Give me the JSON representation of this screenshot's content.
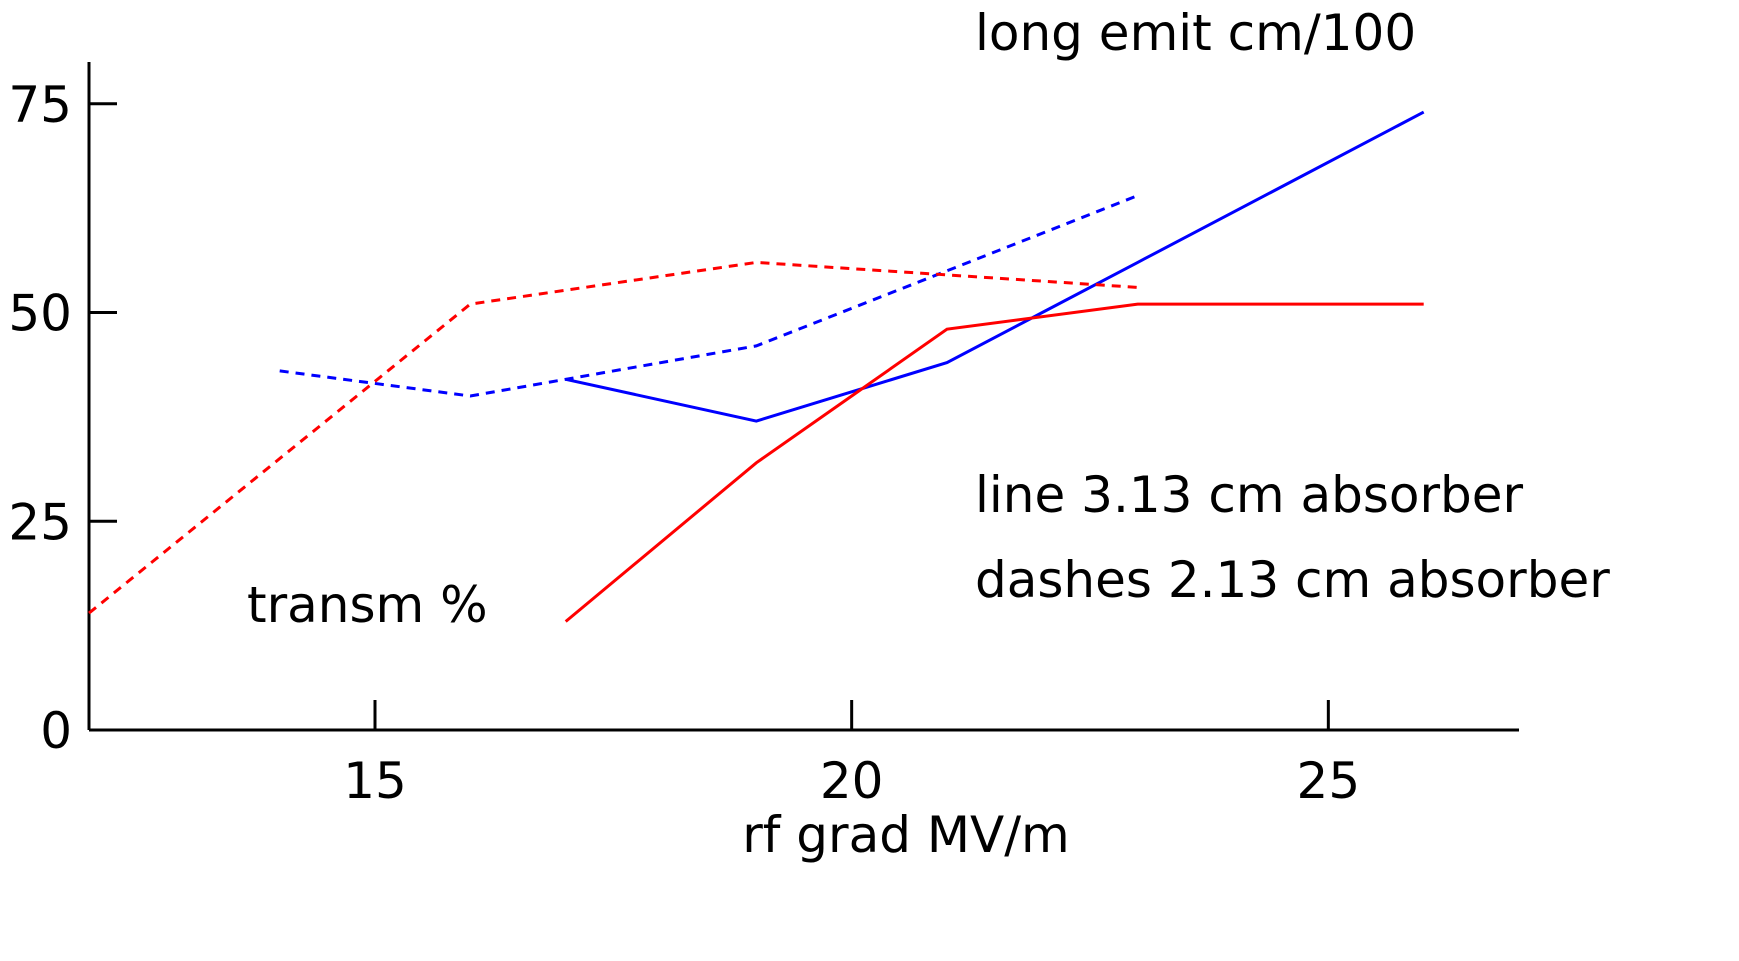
{
  "chart_data": {
    "type": "line",
    "title": "",
    "xlabel": "rf grad MV/m",
    "ylabel": "",
    "xlim": [
      12,
      27
    ],
    "ylim": [
      0,
      80
    ],
    "grid": false,
    "xticks": [
      15,
      20,
      25
    ],
    "yticks": [
      0,
      25,
      50,
      75
    ],
    "xtick_labels": [
      "15",
      "20",
      "25"
    ],
    "ytick_labels": [
      "0",
      "25",
      "50",
      "75"
    ],
    "series": [
      {
        "group": "long emit cm/100",
        "style": "solid",
        "color": "#0000ff",
        "x": [
          17,
          19,
          20,
          21,
          22,
          23,
          26
        ],
        "y": [
          42,
          37,
          40.5,
          44,
          50,
          56,
          74
        ]
      },
      {
        "group": "long emit cm/100",
        "style": "dashed",
        "color": "#0000ff",
        "x": [
          14,
          16,
          17,
          19,
          21,
          23
        ],
        "y": [
          43,
          40,
          42,
          46,
          55,
          64
        ]
      },
      {
        "group": "transm %",
        "style": "solid",
        "color": "#ff0000",
        "x": [
          17,
          19,
          20,
          21,
          23,
          26
        ],
        "y": [
          13,
          32,
          40,
          48,
          51,
          51
        ]
      },
      {
        "group": "transm %",
        "style": "dashed",
        "color": "#ff0000",
        "x": [
          12,
          16,
          19,
          23
        ],
        "y": [
          14,
          51,
          56,
          53
        ]
      }
    ],
    "annotations": {
      "long_emit": "long emit cm/100",
      "transm": "transm %",
      "line_note": "line 3.13 cm absorber",
      "dashes_note": "dashes 2.13 cm absorber"
    },
    "colors": {
      "emit": "#0000ff",
      "transm": "#ff0000",
      "axis": "#000000"
    }
  }
}
